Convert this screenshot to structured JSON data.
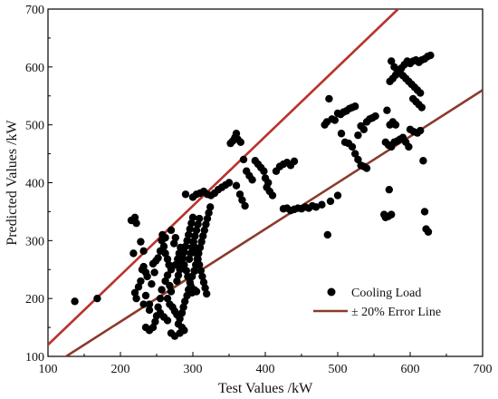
{
  "chart_data": {
    "type": "scatter",
    "xlabel": "Test Values /kW",
    "ylabel": "Predicted Values /kW",
    "xlim": [
      100,
      700
    ],
    "ylim": [
      100,
      700
    ],
    "xticks": [
      100,
      200,
      300,
      400,
      500,
      600,
      700
    ],
    "yticks": [
      100,
      200,
      300,
      400,
      500,
      600,
      700
    ],
    "x_tick_labels": [
      "100",
      "200",
      "300",
      "400",
      "500",
      "600",
      "700"
    ],
    "y_tick_labels": [
      "100",
      "200",
      "300",
      "400",
      "500",
      "600",
      "700"
    ],
    "grid": false,
    "legend": {
      "placement": "bottom-right",
      "entries": [
        {
          "label": "Cooling Load",
          "marker": "circle",
          "color": "#000000"
        },
        {
          "label": "± 20% Error Line",
          "marker": "line",
          "color": "#8b3a2a"
        }
      ]
    },
    "error_lines": [
      {
        "label": "+20%",
        "slope": 1.2,
        "color": "#d42a2a",
        "outer_color": "#8b3a2a"
      },
      {
        "label": "-20%",
        "slope": 0.8,
        "color": "#d42a2a",
        "outer_color": "#8b3a2a"
      }
    ],
    "series": [
      {
        "name": "Cooling Load",
        "color": "#000000",
        "points": [
          [
            137,
            195
          ],
          [
            168,
            200
          ],
          [
            215,
            335
          ],
          [
            220,
            340
          ],
          [
            222,
            330
          ],
          [
            218,
            278
          ],
          [
            228,
            298
          ],
          [
            232,
            282
          ],
          [
            220,
            210
          ],
          [
            222,
            200
          ],
          [
            225,
            220
          ],
          [
            228,
            230
          ],
          [
            230,
            250
          ],
          [
            232,
            255
          ],
          [
            235,
            245
          ],
          [
            237,
            238
          ],
          [
            235,
            205
          ],
          [
            232,
            190
          ],
          [
            240,
            190
          ],
          [
            240,
            180
          ],
          [
            235,
            150
          ],
          [
            240,
            145
          ],
          [
            245,
            150
          ],
          [
            248,
            160
          ],
          [
            250,
            170
          ],
          [
            252,
            185
          ],
          [
            255,
            200
          ],
          [
            257,
            215
          ],
          [
            243,
            225
          ],
          [
            247,
            245
          ],
          [
            245,
            260
          ],
          [
            249,
            265
          ],
          [
            252,
            270
          ],
          [
            255,
            282
          ],
          [
            257,
            300
          ],
          [
            258,
            310
          ],
          [
            262,
            305
          ],
          [
            260,
            290
          ],
          [
            262,
            278
          ],
          [
            265,
            268
          ],
          [
            267,
            258
          ],
          [
            270,
            250
          ],
          [
            265,
            240
          ],
          [
            262,
            230
          ],
          [
            268,
            222
          ],
          [
            270,
            212
          ],
          [
            265,
            200
          ],
          [
            268,
            190
          ],
          [
            272,
            185
          ],
          [
            275,
            178
          ],
          [
            278,
            172
          ],
          [
            255,
            175
          ],
          [
            260,
            168
          ],
          [
            265,
            162
          ],
          [
            270,
            140
          ],
          [
            275,
            135
          ],
          [
            282,
            140
          ],
          [
            285,
            150
          ],
          [
            288,
            145
          ],
          [
            280,
            156
          ],
          [
            282,
            165
          ],
          [
            285,
            175
          ],
          [
            287,
            185
          ],
          [
            289,
            195
          ],
          [
            292,
            205
          ],
          [
            294,
            215
          ],
          [
            297,
            222
          ],
          [
            299,
            210
          ],
          [
            302,
            215
          ],
          [
            305,
            212
          ],
          [
            278,
            230
          ],
          [
            280,
            240
          ],
          [
            282,
            250
          ],
          [
            284,
            260
          ],
          [
            286,
            270
          ],
          [
            288,
            280
          ],
          [
            290,
            290
          ],
          [
            292,
            300
          ],
          [
            294,
            310
          ],
          [
            296,
            320
          ],
          [
            298,
            330
          ],
          [
            300,
            340
          ],
          [
            276,
            258
          ],
          [
            279,
            268
          ],
          [
            281,
            278
          ],
          [
            283,
            288
          ],
          [
            274,
            295
          ],
          [
            276,
            305
          ],
          [
            270,
            318
          ],
          [
            285,
            268
          ],
          [
            288,
            258
          ],
          [
            291,
            248
          ],
          [
            293,
            238
          ],
          [
            296,
            228
          ],
          [
            299,
            238
          ],
          [
            302,
            248
          ],
          [
            304,
            258
          ],
          [
            306,
            268
          ],
          [
            308,
            278
          ],
          [
            310,
            288
          ],
          [
            312,
            298
          ],
          [
            314,
            308
          ],
          [
            316,
            318
          ],
          [
            318,
            328
          ],
          [
            320,
            338
          ],
          [
            322,
            348
          ],
          [
            324,
            358
          ],
          [
            300,
            298
          ],
          [
            303,
            288
          ],
          [
            305,
            278
          ],
          [
            307,
            268
          ],
          [
            309,
            258
          ],
          [
            311,
            248
          ],
          [
            313,
            238
          ],
          [
            315,
            228
          ],
          [
            317,
            218
          ],
          [
            319,
            208
          ],
          [
            295,
            268
          ],
          [
            297,
            278
          ],
          [
            299,
            288
          ],
          [
            301,
            298
          ],
          [
            303,
            308
          ],
          [
            305,
            318
          ],
          [
            307,
            328
          ],
          [
            309,
            338
          ],
          [
            305,
            380
          ],
          [
            310,
            382
          ],
          [
            315,
            385
          ],
          [
            320,
            380
          ],
          [
            325,
            378
          ],
          [
            330,
            382
          ],
          [
            335,
            388
          ],
          [
            340,
            392
          ],
          [
            345,
            396
          ],
          [
            350,
            400
          ],
          [
            290,
            380
          ],
          [
            300,
            375
          ],
          [
            355,
            472
          ],
          [
            358,
            478
          ],
          [
            362,
            475
          ],
          [
            366,
            470
          ],
          [
            360,
            485
          ],
          [
            352,
            468
          ],
          [
            370,
            440
          ],
          [
            374,
            420
          ],
          [
            378,
            412
          ],
          [
            382,
            405
          ],
          [
            386,
            438
          ],
          [
            390,
            432
          ],
          [
            394,
            426
          ],
          [
            398,
            420
          ],
          [
            402,
            392
          ],
          [
            406,
            385
          ],
          [
            410,
            378
          ],
          [
            400,
            408
          ],
          [
            404,
            400
          ],
          [
            360,
            395
          ],
          [
            365,
            380
          ],
          [
            368,
            370
          ],
          [
            372,
            360
          ],
          [
            415,
            420
          ],
          [
            420,
            428
          ],
          [
            425,
            432
          ],
          [
            430,
            435
          ],
          [
            435,
            430
          ],
          [
            440,
            437
          ],
          [
            425,
            355
          ],
          [
            430,
            356
          ],
          [
            435,
            352
          ],
          [
            440,
            354
          ],
          [
            445,
            356
          ],
          [
            450,
            355
          ],
          [
            455,
            358
          ],
          [
            460,
            356
          ],
          [
            465,
            360
          ],
          [
            470,
            358
          ],
          [
            478,
            362
          ],
          [
            490,
            368
          ],
          [
            486,
            310
          ],
          [
            500,
            378
          ],
          [
            482,
            500
          ],
          [
            485,
            505
          ],
          [
            488,
            545
          ],
          [
            492,
            510
          ],
          [
            496,
            508
          ],
          [
            500,
            520
          ],
          [
            504,
            518
          ],
          [
            508,
            522
          ],
          [
            512,
            524
          ],
          [
            516,
            528
          ],
          [
            520,
            530
          ],
          [
            524,
            532
          ],
          [
            505,
            485
          ],
          [
            510,
            470
          ],
          [
            515,
            468
          ],
          [
            520,
            462
          ],
          [
            524,
            450
          ],
          [
            528,
            440
          ],
          [
            532,
            430
          ],
          [
            536,
            428
          ],
          [
            540,
            425
          ],
          [
            528,
            482
          ],
          [
            532,
            498
          ],
          [
            536,
            492
          ],
          [
            540,
            505
          ],
          [
            544,
            510
          ],
          [
            548,
            512
          ],
          [
            552,
            515
          ],
          [
            564,
            345
          ],
          [
            566,
            340
          ],
          [
            570,
            342
          ],
          [
            574,
            345
          ],
          [
            568,
            525
          ],
          [
            572,
            500
          ],
          [
            576,
            505
          ],
          [
            580,
            500
          ],
          [
            571,
            388
          ],
          [
            566,
            470
          ],
          [
            570,
            465
          ],
          [
            574,
            462
          ],
          [
            578,
            470
          ],
          [
            582,
            472
          ],
          [
            586,
            475
          ],
          [
            590,
            478
          ],
          [
            594,
            470
          ],
          [
            598,
            462
          ],
          [
            572,
            575
          ],
          [
            576,
            580
          ],
          [
            580,
            586
          ],
          [
            584,
            592
          ],
          [
            588,
            598
          ],
          [
            592,
            604
          ],
          [
            596,
            610
          ],
          [
            600,
            606
          ],
          [
            604,
            610
          ],
          [
            608,
            612
          ],
          [
            612,
            608
          ],
          [
            616,
            612
          ],
          [
            620,
            614
          ],
          [
            624,
            618
          ],
          [
            628,
            620
          ],
          [
            574,
            610
          ],
          [
            578,
            600
          ],
          [
            582,
            595
          ],
          [
            586,
            590
          ],
          [
            590,
            585
          ],
          [
            594,
            580
          ],
          [
            598,
            575
          ],
          [
            602,
            570
          ],
          [
            606,
            565
          ],
          [
            610,
            560
          ],
          [
            614,
            555
          ],
          [
            604,
            545
          ],
          [
            608,
            540
          ],
          [
            612,
            535
          ],
          [
            616,
            530
          ],
          [
            600,
            492
          ],
          [
            605,
            488
          ],
          [
            610,
            486
          ],
          [
            614,
            490
          ],
          [
            618,
            438
          ],
          [
            620,
            350
          ],
          [
            622,
            320
          ],
          [
            625,
            315
          ]
        ]
      }
    ]
  }
}
